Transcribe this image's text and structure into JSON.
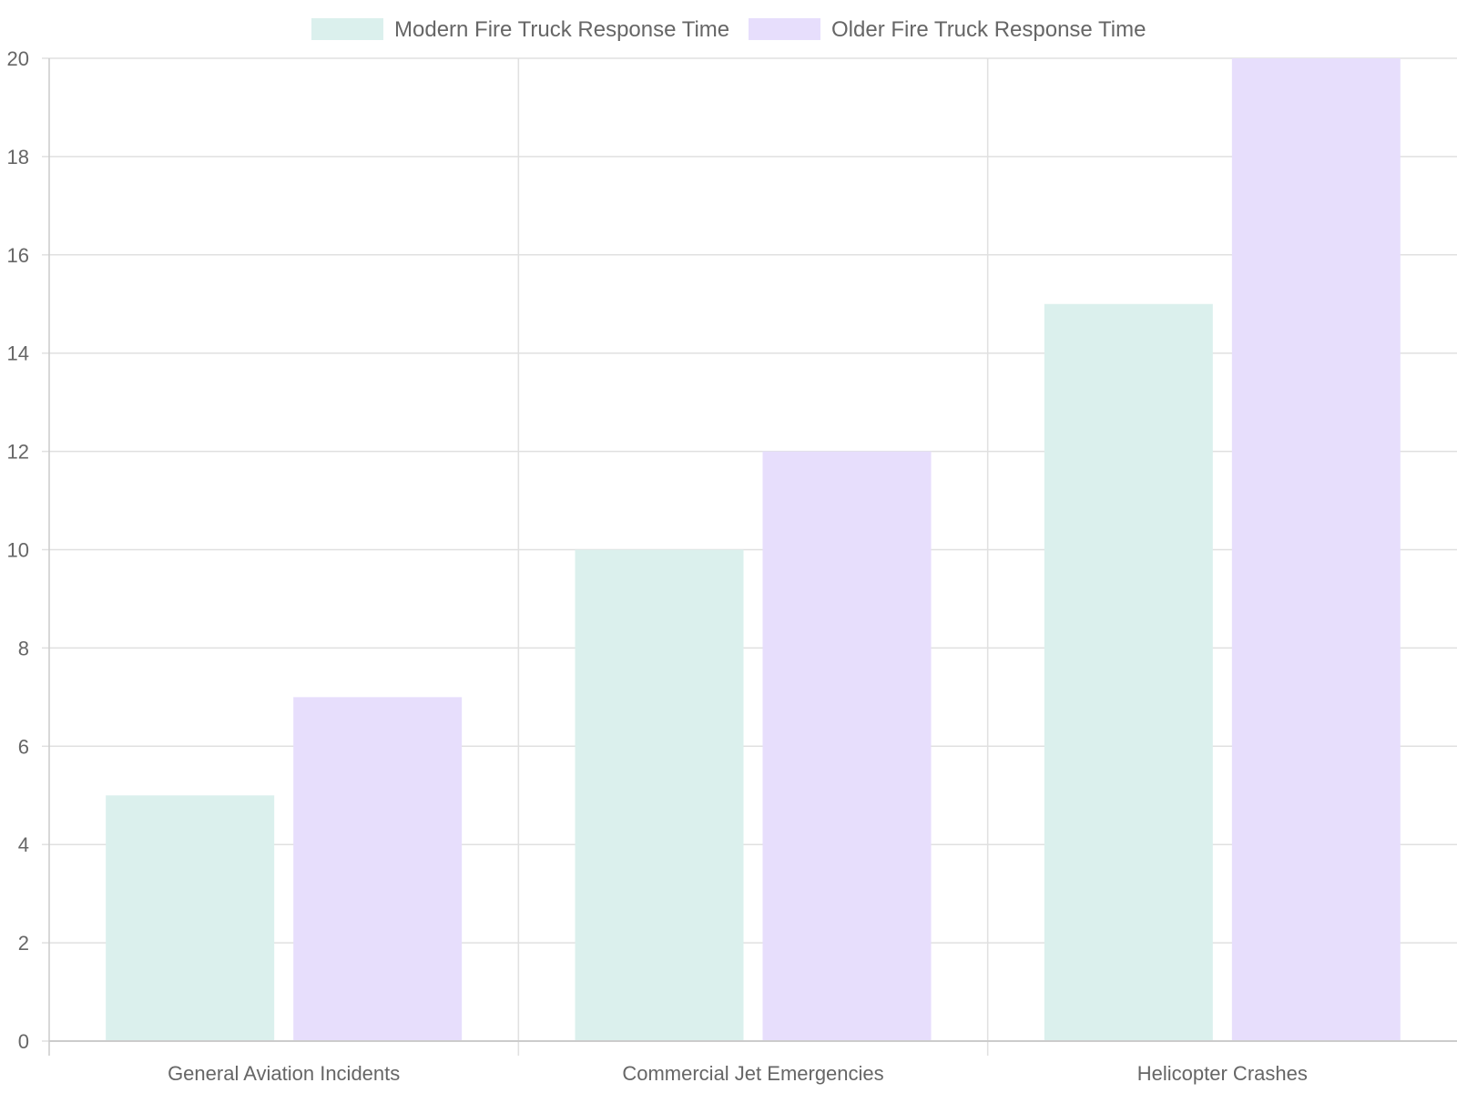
{
  "chart_data": {
    "type": "bar",
    "title": "",
    "xlabel": "",
    "ylabel": "",
    "categories": [
      "General Aviation Incidents",
      "Commercial Jet Emergencies",
      "Helicopter Crashes"
    ],
    "series": [
      {
        "name": "Modern Fire Truck Response Time",
        "values": [
          5,
          10,
          15
        ],
        "color": "#dbf0ed"
      },
      {
        "name": "Older Fire Truck Response Time",
        "values": [
          7,
          12,
          20
        ],
        "color": "#e7defc"
      }
    ],
    "ylim": [
      0,
      20
    ],
    "yticks": [
      "0",
      "2",
      "4",
      "6",
      "8",
      "10",
      "12",
      "14",
      "16",
      "18",
      "20"
    ],
    "grid": true,
    "legend_position": "top"
  }
}
